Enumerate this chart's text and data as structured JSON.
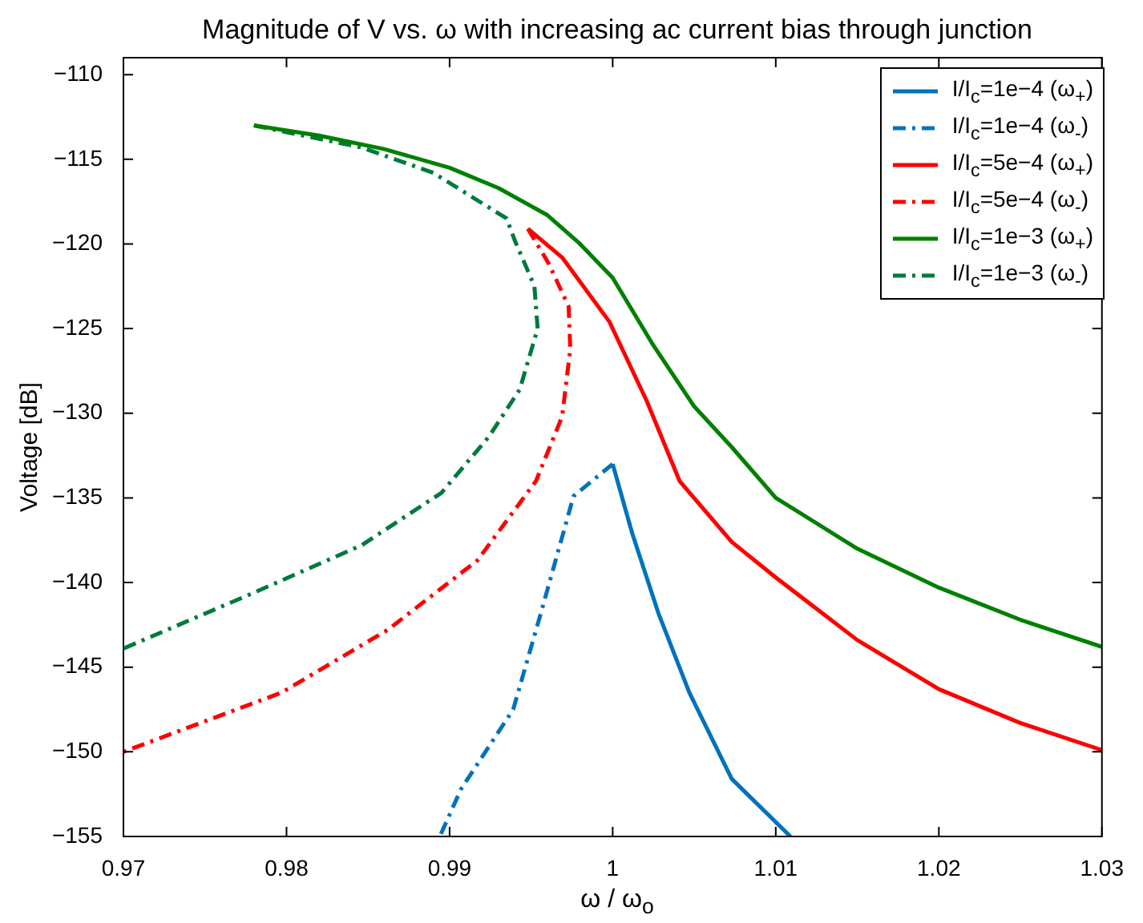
{
  "chart_data": {
    "type": "line",
    "title": "Magnitude of V vs. ω with increasing ac current bias through junction",
    "xlabel": "ω / ω$_{o}$",
    "ylabel": "Voltage [dB]",
    "xlim": [
      0.97,
      1.03
    ],
    "xticks": [
      0.97,
      0.98,
      0.99,
      1,
      1.01,
      1.02,
      1.03
    ],
    "ylim": [
      -155,
      -109
    ],
    "yticks": [
      {
        "value": -155,
        "label": "−155"
      },
      {
        "value": -150,
        "label": "−150"
      },
      {
        "value": -145,
        "label": "−145"
      },
      {
        "value": -140,
        "label": "−140"
      },
      {
        "value": -135,
        "label": "−135"
      },
      {
        "value": -130,
        "label": "−130"
      },
      {
        "value": -125,
        "label": "−125"
      },
      {
        "value": -120,
        "label": "−120"
      },
      {
        "value": -115,
        "label": "−115"
      },
      {
        "value": -110,
        "label": "−110"
      }
    ],
    "grid": false,
    "legend": "top right",
    "marker": "none",
    "series": [
      {
        "name": "I/I$_{c}$=1e−4 (ω$_{+}$)",
        "color": "#0072bd",
        "line_style": "solid",
        "x": [
          1.0,
          1.0012,
          1.0028,
          1.0047,
          1.0073,
          1.0109
        ],
        "values": [
          -133,
          -137.1,
          -141.8,
          -146.5,
          -151.6,
          -155
        ]
      },
      {
        "name": "I/I$_{c}$=1e−4 (ω$_{-}$)",
        "color": "#0072bd",
        "line_style": "dashed",
        "x": [
          1.0,
          0.9976,
          0.9956,
          0.9939,
          0.9907,
          0.9894
        ],
        "values": [
          -133,
          -134.9,
          -141.8,
          -147.5,
          -152.2,
          -155
        ]
      },
      {
        "name": "I/I$_{c}$=5e−4 (ω$_{+}$)",
        "color": "#ff0000",
        "line_style": "solid",
        "x": [
          0.9948,
          0.9969,
          0.9998,
          1.0021,
          1.0041,
          1.0073,
          1.01,
          1.015,
          1.02,
          1.025,
          1.03
        ],
        "values": [
          -119.1,
          -120.8,
          -124.6,
          -129.3,
          -134,
          -137.6,
          -139.7,
          -143.4,
          -146.3,
          -148.3,
          -149.9
        ]
      },
      {
        "name": "I/I$_{c}$=5e−4 (ω$_{-}$)",
        "color": "#ff0000",
        "line_style": "dashed",
        "x": [
          0.9948,
          0.9961,
          0.9973,
          0.9974,
          0.9969,
          0.9953,
          0.9917,
          0.9862,
          0.9797,
          0.97
        ],
        "values": [
          -119.1,
          -121.2,
          -123.7,
          -126.2,
          -130.2,
          -134,
          -138.7,
          -142.8,
          -146.5,
          -150
        ]
      },
      {
        "name": "I/I$_{c}$=1e−3 (ω$_{+}$)",
        "color": "#008000",
        "line_style": "solid",
        "x": [
          0.978,
          0.982,
          0.986,
          0.99,
          0.993,
          0.996,
          0.998,
          1.0,
          1.0025,
          1.005,
          1.0073,
          1.01,
          1.015,
          1.02,
          1.025,
          1.03
        ],
        "values": [
          -113,
          -113.6,
          -114.4,
          -115.5,
          -116.7,
          -118.3,
          -120,
          -122,
          -126,
          -129.6,
          -132,
          -135,
          -138,
          -140.3,
          -142.2,
          -143.8
        ]
      },
      {
        "name": "I/I$_{c}$=1e−3 (ω$_{-}$)",
        "color": "#007a3d",
        "line_style": "dashed",
        "x": [
          0.978,
          0.98,
          0.9846,
          0.989,
          0.9935,
          0.994,
          0.9952,
          0.9954,
          0.9943,
          0.9924,
          0.9895,
          0.9846,
          0.978,
          0.97
        ],
        "values": [
          -113,
          -113.4,
          -114.3,
          -115.8,
          -118.5,
          -119.8,
          -122.5,
          -125,
          -128.6,
          -131.4,
          -134.7,
          -137.8,
          -140.6,
          -143.9
        ]
      }
    ]
  }
}
